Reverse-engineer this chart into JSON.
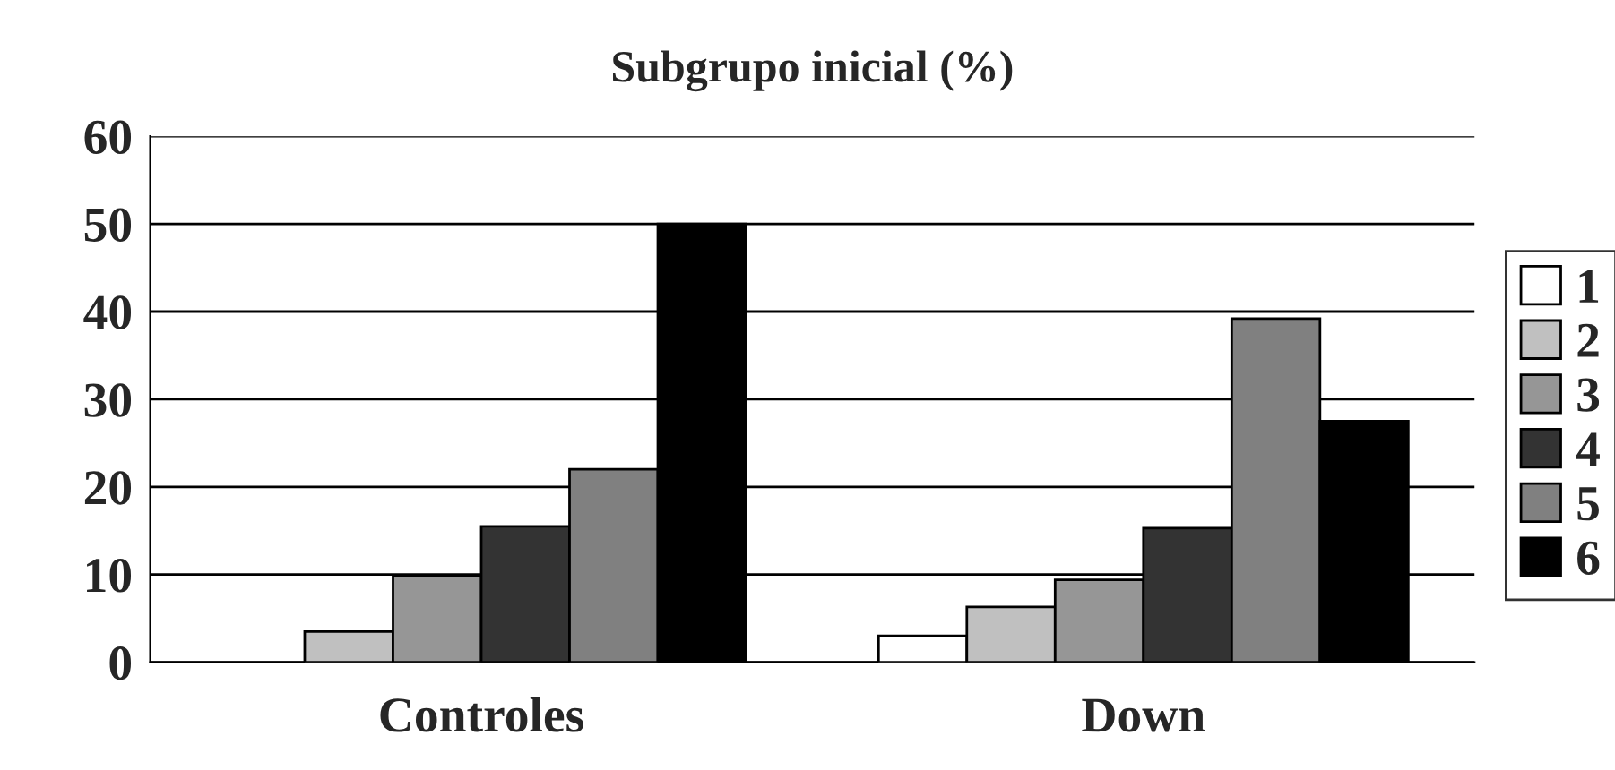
{
  "chart_data": {
    "type": "bar",
    "title": "Subgrupo inicial (%)",
    "categories": [
      "Controles",
      "Down"
    ],
    "series": [
      {
        "name": "1",
        "color": "#ffffff",
        "values": [
          0,
          3
        ]
      },
      {
        "name": "2",
        "color": "#c0c0c0",
        "values": [
          3.5,
          6.3
        ]
      },
      {
        "name": "3",
        "color": "#969696",
        "values": [
          9.8,
          9.4
        ]
      },
      {
        "name": "4",
        "color": "#333333",
        "values": [
          15.5,
          15.3
        ]
      },
      {
        "name": "5",
        "color": "#808080",
        "values": [
          22,
          39.2
        ]
      },
      {
        "name": "6",
        "color": "#000000",
        "values": [
          50,
          27.5
        ]
      }
    ],
    "ylim": [
      0,
      60
    ],
    "yticks": [
      0,
      10,
      20,
      30,
      40,
      50,
      60
    ],
    "grid": "y",
    "legend": "right"
  }
}
